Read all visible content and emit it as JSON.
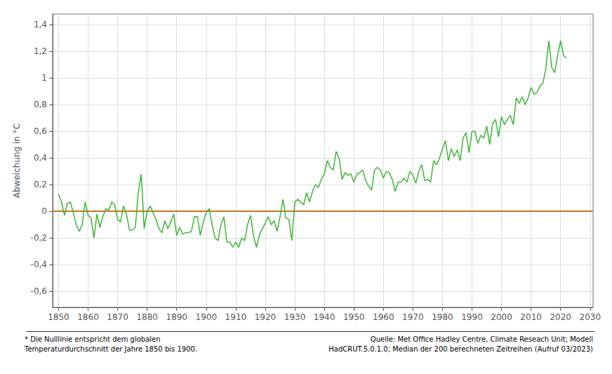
{
  "chart_data": {
    "type": "line",
    "ylabel": "Abweichung in °C",
    "color": "#3db534",
    "grid": true,
    "xlim": [
      1848,
      2031
    ],
    "xticks": [
      1850,
      1860,
      1870,
      1880,
      1890,
      1900,
      1910,
      1920,
      1930,
      1940,
      1950,
      1960,
      1970,
      1980,
      1990,
      2000,
      2010,
      2020,
      2030
    ],
    "ylim": [
      -0.72,
      1.48
    ],
    "yticks": [
      {
        "value": -0.6,
        "label": "-0,6"
      },
      {
        "value": -0.4,
        "label": "-0,4"
      },
      {
        "value": -0.2,
        "label": "-0,2"
      },
      0,
      {
        "value": 0.2,
        "label": "0,2"
      },
      {
        "value": 0.4,
        "label": "0,4"
      },
      {
        "value": 0.6,
        "label": "0,6"
      },
      {
        "value": 0.8,
        "label": "0,8"
      },
      1,
      {
        "value": 1.2,
        "label": "1,2"
      },
      {
        "value": 1.4,
        "label": "1,4"
      }
    ],
    "reference_lines": [
      {
        "y": 0,
        "color": "#c87820"
      }
    ],
    "annotations": [
      "* Die Nulllinie entspricht dem globalen\nTemperaturdurchschnitt der Jahre 1850 bis 1900.",
      "Quelle: Met Office Hadley Centre, Climate Reseach Unit; Modell\nHadCRUT.5.0.1.0; Median der 200 berechneten Zeitreihen (Aufruf 03/2023)"
    ],
    "x": [
      1850,
      1851,
      1852,
      1853,
      1854,
      1855,
      1856,
      1857,
      1858,
      1859,
      1860,
      1861,
      1862,
      1863,
      1864,
      1865,
      1866,
      1867,
      1868,
      1869,
      1870,
      1871,
      1872,
      1873,
      1874,
      1875,
      1876,
      1877,
      1878,
      1879,
      1880,
      1881,
      1882,
      1883,
      1884,
      1885,
      1886,
      1887,
      1888,
      1889,
      1890,
      1891,
      1892,
      1893,
      1894,
      1895,
      1896,
      1897,
      1898,
      1899,
      1900,
      1901,
      1902,
      1903,
      1904,
      1905,
      1906,
      1907,
      1908,
      1909,
      1910,
      1911,
      1912,
      1913,
      1914,
      1915,
      1916,
      1917,
      1918,
      1919,
      1920,
      1921,
      1922,
      1923,
      1924,
      1925,
      1926,
      1927,
      1928,
      1929,
      1930,
      1931,
      1932,
      1933,
      1934,
      1935,
      1936,
      1937,
      1938,
      1939,
      1940,
      1941,
      1942,
      1943,
      1944,
      1945,
      1946,
      1947,
      1948,
      1949,
      1950,
      1951,
      1952,
      1953,
      1954,
      1955,
      1956,
      1957,
      1958,
      1959,
      1960,
      1961,
      1962,
      1963,
      1964,
      1965,
      1966,
      1967,
      1968,
      1969,
      1970,
      1971,
      1972,
      1973,
      1974,
      1975,
      1976,
      1977,
      1978,
      1979,
      1980,
      1981,
      1982,
      1983,
      1984,
      1985,
      1986,
      1987,
      1988,
      1989,
      1990,
      1991,
      1992,
      1993,
      1994,
      1995,
      1996,
      1997,
      1998,
      1999,
      2000,
      2001,
      2002,
      2003,
      2004,
      2005,
      2006,
      2007,
      2008,
      2009,
      2010,
      2011,
      2012,
      2013,
      2014,
      2015,
      2016,
      2017,
      2018,
      2019,
      2020,
      2021,
      2022
    ],
    "values": [
      0.13,
      0.07,
      -0.03,
      0.06,
      0.07,
      -0.01,
      -0.1,
      -0.15,
      -0.1,
      0.07,
      -0.03,
      -0.05,
      -0.2,
      -0.02,
      -0.12,
      -0.04,
      0.02,
      0.01,
      0.07,
      0.05,
      -0.06,
      -0.08,
      0.04,
      -0.02,
      -0.14,
      -0.14,
      -0.12,
      0.14,
      0.28,
      -0.13,
      0.0,
      0.04,
      -0.01,
      -0.06,
      -0.13,
      -0.16,
      -0.07,
      -0.13,
      -0.08,
      -0.02,
      -0.18,
      -0.12,
      -0.17,
      -0.16,
      -0.16,
      -0.15,
      -0.04,
      -0.04,
      -0.18,
      -0.08,
      -0.01,
      0.02,
      -0.1,
      -0.2,
      -0.22,
      -0.1,
      -0.04,
      -0.23,
      -0.23,
      -0.27,
      -0.23,
      -0.27,
      -0.2,
      -0.22,
      -0.1,
      -0.03,
      -0.18,
      -0.27,
      -0.18,
      -0.13,
      -0.09,
      -0.04,
      -0.1,
      -0.07,
      -0.15,
      -0.04,
      0.09,
      -0.05,
      -0.06,
      -0.22,
      0.07,
      0.09,
      0.07,
      0.05,
      0.14,
      0.07,
      0.15,
      0.2,
      0.18,
      0.24,
      0.28,
      0.38,
      0.33,
      0.31,
      0.45,
      0.4,
      0.24,
      0.29,
      0.27,
      0.28,
      0.22,
      0.28,
      0.29,
      0.31,
      0.23,
      0.19,
      0.16,
      0.31,
      0.33,
      0.31,
      0.25,
      0.3,
      0.29,
      0.24,
      0.15,
      0.22,
      0.22,
      0.25,
      0.22,
      0.3,
      0.27,
      0.21,
      0.3,
      0.35,
      0.23,
      0.24,
      0.22,
      0.38,
      0.35,
      0.4,
      0.47,
      0.53,
      0.38,
      0.47,
      0.41,
      0.46,
      0.38,
      0.55,
      0.59,
      0.44,
      0.6,
      0.6,
      0.51,
      0.57,
      0.55,
      0.64,
      0.5,
      0.66,
      0.69,
      0.56,
      0.71,
      0.65,
      0.69,
      0.72,
      0.65,
      0.85,
      0.81,
      0.86,
      0.8,
      0.85,
      0.93,
      0.88,
      0.89,
      0.94,
      0.96,
      1.07,
      1.28,
      1.08,
      1.04,
      1.17,
      1.28,
      1.17,
      1.15
    ]
  }
}
